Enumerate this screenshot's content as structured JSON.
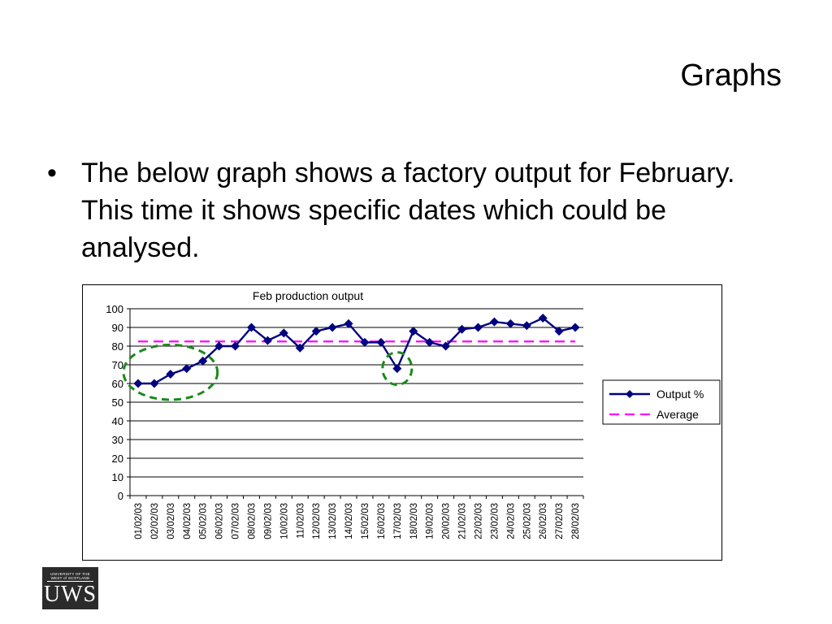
{
  "slide": {
    "title": "Graphs",
    "bullet": "The below graph shows a factory output for February.  This time it shows specific dates which could be analysed."
  },
  "logo": {
    "small_text_line1": "UNIVERSITY OF THE",
    "small_text_line2": "WEST of SCOTLAND",
    "big_text": "UWS"
  },
  "colors": {
    "output_series": "#000080",
    "average_line": "#ff00ff",
    "highlight_circle": "#1a8a1a"
  },
  "chart_data": {
    "type": "line",
    "title": "Feb production output",
    "xlabel": "",
    "ylabel": "",
    "ylim": [
      0,
      100
    ],
    "yticks": [
      0,
      10,
      20,
      30,
      40,
      50,
      60,
      70,
      80,
      90,
      100
    ],
    "grid": true,
    "legend_position": "right",
    "categories": [
      "01/02/03",
      "02/02/03",
      "03/02/03",
      "04/02/03",
      "05/02/03",
      "06/02/03",
      "07/02/03",
      "08/02/03",
      "09/02/03",
      "10/02/03",
      "11/02/03",
      "12/02/03",
      "13/02/03",
      "14/02/03",
      "15/02/03",
      "16/02/03",
      "17/02/03",
      "18/02/03",
      "19/02/03",
      "20/02/03",
      "21/02/03",
      "22/02/03",
      "23/02/03",
      "24/02/03",
      "25/02/03",
      "26/02/03",
      "27/02/03",
      "28/02/03"
    ],
    "series": [
      {
        "name": "Output %",
        "values": [
          60,
          60,
          65,
          68,
          72,
          80,
          80,
          90,
          83,
          87,
          79,
          88,
          90,
          92,
          82,
          82,
          68,
          88,
          82,
          80,
          89,
          90,
          93,
          92,
          91,
          95,
          88,
          90
        ],
        "style": "solid-diamond"
      },
      {
        "name": "Average",
        "values": [
          82.5,
          82.5,
          82.5,
          82.5,
          82.5,
          82.5,
          82.5,
          82.5,
          82.5,
          82.5,
          82.5,
          82.5,
          82.5,
          82.5,
          82.5,
          82.5,
          82.5,
          82.5,
          82.5,
          82.5,
          82.5,
          82.5,
          82.5,
          82.5,
          82.5,
          82.5,
          82.5,
          82.5
        ],
        "style": "dashed"
      }
    ],
    "highlights": [
      {
        "from": "01/02/03",
        "to": "05/02/03"
      },
      {
        "from": "17/02/03",
        "to": "17/02/03"
      }
    ]
  }
}
